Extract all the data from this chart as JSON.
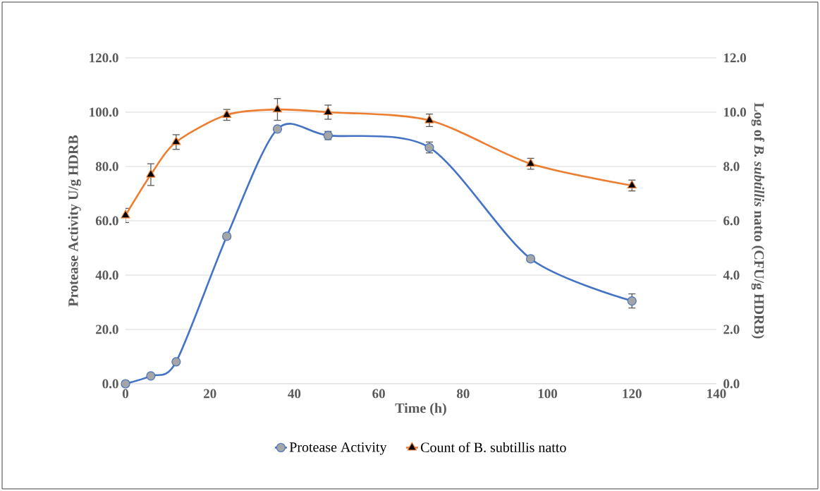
{
  "chart_data": {
    "type": "line",
    "xlabel": "Time (h)",
    "ylabel": "Protease Activity U/g HDRB",
    "y2label": "Log of *B. subtillis* natto  (CFU/g HDRB)",
    "x": [
      0,
      6,
      12,
      24,
      36,
      48,
      72,
      96,
      120
    ],
    "series": [
      {
        "name": "Protease Activity",
        "color": "#4472c4",
        "marker": "circle",
        "values": [
          0,
          2.9,
          8.1,
          54.3,
          93.8,
          91.4,
          87.0,
          46.0,
          30.5
        ],
        "errors": [
          null,
          null,
          null,
          1.0,
          null,
          1.5,
          2.0,
          1.0,
          2.6
        ]
      },
      {
        "name": "Count of B. subtillis natto",
        "color": "#ed7d31",
        "marker": "triangle",
        "axis": "y2",
        "values": [
          6.2,
          7.7,
          8.9,
          9.9,
          10.1,
          10.0,
          9.7,
          8.1,
          7.3
        ],
        "errors": [
          0.26,
          0.4,
          0.27,
          0.2,
          0.4,
          0.26,
          0.23,
          0.2,
          0.2
        ]
      }
    ],
    "xlim": [
      0,
      140
    ],
    "xticks": [
      0,
      20,
      40,
      60,
      80,
      100,
      120,
      140
    ],
    "ylim": [
      0,
      120
    ],
    "yticks": [
      {
        "value": 0,
        "label": "0.0"
      },
      {
        "value": 20,
        "label": "20.0"
      },
      {
        "value": 40,
        "label": "40.0"
      },
      {
        "value": 60,
        "label": "60.0"
      },
      {
        "value": 80,
        "label": "80.0"
      },
      {
        "value": 100,
        "label": "100.0"
      },
      {
        "value": 120,
        "label": "120.0"
      }
    ],
    "y2lim": [
      0,
      12
    ],
    "y2ticks": [
      {
        "value": 0,
        "label": "0.0"
      },
      {
        "value": 2,
        "label": "2.0"
      },
      {
        "value": 4,
        "label": "4.0"
      },
      {
        "value": 6,
        "label": "6.0"
      },
      {
        "value": 8,
        "label": "8.0"
      },
      {
        "value": 10,
        "label": "10.0"
      },
      {
        "value": 12,
        "label": "12.0"
      }
    ],
    "grid": "y",
    "legend": "bottom",
    "line_style": "solid"
  }
}
